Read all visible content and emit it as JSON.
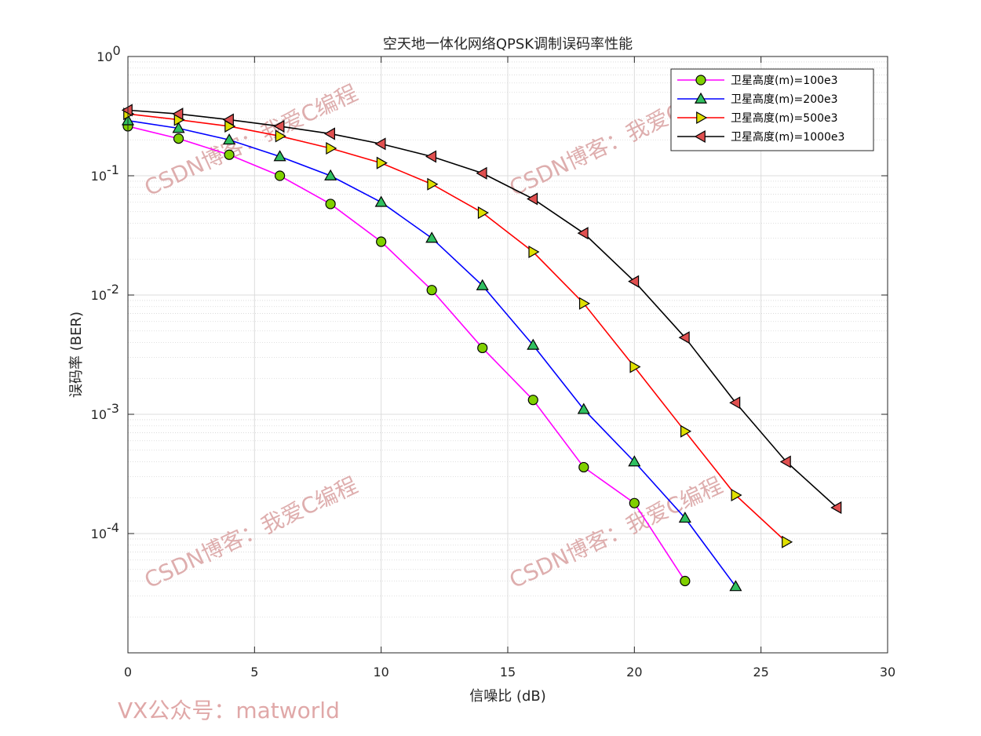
{
  "chart_data": {
    "type": "line",
    "title": "空天地一体化网络QPSK调制误码率性能",
    "xlabel": "信噪比 (dB)",
    "ylabel": "误码率 (BER)",
    "xlim": [
      0,
      30
    ],
    "ylim": [
      1e-05,
      1
    ],
    "yscale": "log",
    "grid": true,
    "legend_position": "top-right",
    "x_ticks": [
      0,
      5,
      10,
      15,
      20,
      25,
      30
    ],
    "y_ticks": [
      {
        "value": 1,
        "base": "10",
        "exp": "0"
      },
      {
        "value": 0.1,
        "base": "10",
        "exp": "-1"
      },
      {
        "value": 0.01,
        "base": "10",
        "exp": "-2"
      },
      {
        "value": 0.001,
        "base": "10",
        "exp": "-3"
      },
      {
        "value": 0.0001,
        "base": "10",
        "exp": "-4"
      }
    ],
    "series": [
      {
        "name": "卫星高度(m)=100e3",
        "color": "#ff00ff",
        "marker": "circle",
        "marker_color": "#80d000",
        "x": [
          0,
          2,
          4,
          6,
          8,
          10,
          12,
          14,
          16,
          18,
          20,
          22
        ],
        "y": [
          0.26,
          0.205,
          0.15,
          0.1,
          0.058,
          0.028,
          0.011,
          0.0036,
          0.00132,
          0.00036,
          0.00018,
          4e-05
        ]
      },
      {
        "name": "卫星高度(m)=200e3",
        "color": "#0000ff",
        "marker": "triangle-up",
        "marker_color": "#30c060",
        "x": [
          0,
          2,
          4,
          6,
          8,
          10,
          12,
          14,
          16,
          18,
          20,
          22,
          24
        ],
        "y": [
          0.29,
          0.25,
          0.2,
          0.145,
          0.1,
          0.06,
          0.03,
          0.012,
          0.0038,
          0.0011,
          0.0004,
          0.000135,
          3.6e-05
        ]
      },
      {
        "name": "卫星高度(m)=500e3",
        "color": "#ff0000",
        "marker": "triangle-right",
        "marker_color": "#e0e000",
        "x": [
          0,
          2,
          4,
          6,
          8,
          10,
          12,
          14,
          16,
          18,
          20,
          22,
          24,
          26
        ],
        "y": [
          0.33,
          0.295,
          0.26,
          0.215,
          0.17,
          0.128,
          0.085,
          0.049,
          0.023,
          0.0085,
          0.0025,
          0.00072,
          0.00021,
          8.5e-05
        ]
      },
      {
        "name": "卫星高度(m)=1000e3",
        "color": "#000000",
        "marker": "triangle-left",
        "marker_color": "#e05050",
        "x": [
          0,
          2,
          4,
          6,
          8,
          10,
          12,
          14,
          16,
          18,
          20,
          22,
          24,
          26,
          28
        ],
        "y": [
          0.355,
          0.33,
          0.295,
          0.26,
          0.225,
          0.185,
          0.145,
          0.105,
          0.064,
          0.033,
          0.013,
          0.0044,
          0.00125,
          0.0004,
          0.000165
        ]
      }
    ]
  },
  "watermarks": {
    "blog": "CSDN博客：我爱C编程",
    "footer": "VX公众号：matworld"
  }
}
